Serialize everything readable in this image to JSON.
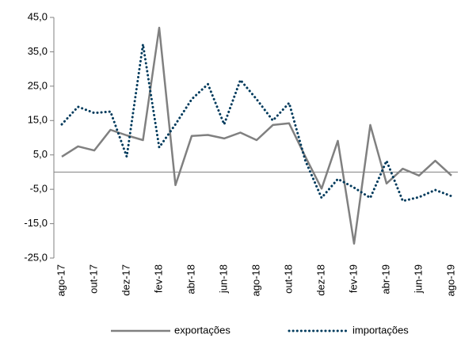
{
  "chart_data": {
    "type": "line",
    "categories": [
      "ago-17",
      null,
      "out-17",
      null,
      "dez-17",
      null,
      "fev-18",
      null,
      "abr-18",
      null,
      "jun-18",
      null,
      "ago-18",
      null,
      "out-18",
      null,
      "dez-18",
      null,
      "fev-19",
      null,
      "abr-19",
      null,
      "jun-19",
      null,
      "ago-19"
    ],
    "series": [
      {
        "name": "exportações",
        "color": "#808080",
        "style": "solid",
        "values": [
          4.5,
          7.5,
          6.3,
          12.3,
          10.7,
          9.3,
          42.0,
          -3.8,
          10.5,
          10.8,
          9.8,
          11.5,
          9.3,
          13.7,
          14.2,
          4.5,
          -4.8,
          9.1,
          -20.8,
          13.7,
          -3.3,
          1.0,
          -1.0,
          3.3,
          -1.0
        ]
      },
      {
        "name": "importações",
        "color": "#003a5c",
        "style": "dotted",
        "values": [
          13.9,
          19.0,
          17.2,
          17.6,
          4.5,
          37.2,
          7.2,
          13.9,
          21.2,
          25.6,
          13.9,
          26.8,
          21.2,
          15.0,
          20.1,
          3.3,
          -7.5,
          -2.0,
          -4.5,
          -7.5,
          3.3,
          -8.4,
          -7.3,
          -5.2,
          -7.0
        ]
      }
    ],
    "ylim": [
      -25,
      45
    ],
    "yticks": [
      {
        "value": -25,
        "label": "-25,0"
      },
      {
        "value": -15,
        "label": "-15,0"
      },
      {
        "value": -5,
        "label": "-5,0"
      },
      {
        "value": 5,
        "label": "5,0"
      },
      {
        "value": 15,
        "label": "15,0"
      },
      {
        "value": 25,
        "label": "25,0"
      },
      {
        "value": 35,
        "label": "35,0"
      },
      {
        "value": 45,
        "label": "45,0"
      }
    ],
    "legend": "bottom"
  }
}
